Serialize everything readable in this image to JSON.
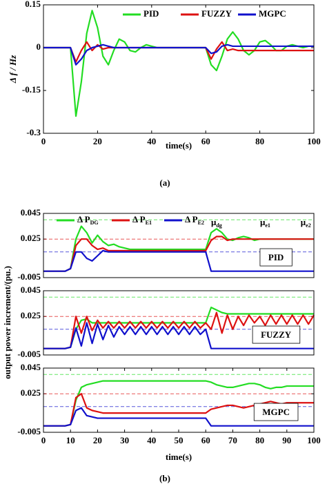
{
  "chart_data": [
    {
      "type": "line",
      "ylabel": "Δ f / Hz",
      "xlabel": "time(s)",
      "caption": "(a)",
      "legend": "upper right",
      "xlim": [
        0,
        100
      ],
      "xticks": [
        0,
        20,
        40,
        60,
        80,
        100
      ],
      "ylim": [
        -0.3,
        0.15
      ],
      "yticks": [
        0.15,
        0,
        -0.15,
        -0.3
      ],
      "x": [
        0,
        2,
        4,
        6,
        8,
        10,
        12,
        14,
        16,
        18,
        20,
        22,
        24,
        26,
        28,
        30,
        32,
        34,
        36,
        38,
        40,
        42,
        44,
        46,
        48,
        50,
        52,
        54,
        56,
        58,
        60,
        62,
        64,
        66,
        68,
        70,
        72,
        74,
        76,
        78,
        80,
        82,
        84,
        86,
        88,
        90,
        92,
        94,
        96,
        98,
        100
      ],
      "series": [
        {
          "name": "PID",
          "color": "#22dd22",
          "values": [
            0,
            0,
            0,
            0,
            0,
            0,
            -0.24,
            -0.12,
            0.05,
            0.13,
            0.07,
            -0.03,
            -0.06,
            -0.01,
            0.03,
            0.02,
            -0.01,
            -0.015,
            0,
            0.01,
            0.005,
            0,
            0,
            0,
            0,
            0,
            0,
            0,
            0,
            0,
            0,
            -0.06,
            -0.08,
            -0.03,
            0.03,
            0.055,
            0.03,
            -0.01,
            -0.025,
            -0.01,
            0.02,
            0.025,
            0.01,
            -0.01,
            -0.01,
            0.005,
            0.01,
            0.005,
            0,
            0.005,
            0.005
          ]
        },
        {
          "name": "FUZZY",
          "color": "#dd1111",
          "values": [
            0,
            0,
            0,
            0,
            0,
            0,
            -0.05,
            -0.01,
            0.02,
            -0.01,
            0.01,
            -0.005,
            0,
            0,
            0,
            0,
            0,
            0,
            0,
            0,
            0,
            0,
            0,
            0,
            0,
            0,
            0,
            0,
            0,
            0,
            0,
            -0.04,
            -0.005,
            0.02,
            -0.01,
            -0.005,
            -0.01,
            -0.01,
            -0.01,
            -0.01,
            -0.01,
            -0.01,
            -0.01,
            -0.01,
            -0.01,
            -0.01,
            -0.01,
            -0.01,
            -0.01,
            -0.01,
            -0.01
          ]
        },
        {
          "name": "MGPC",
          "color": "#1010cc",
          "values": [
            0,
            0,
            0,
            0,
            0,
            0,
            -0.06,
            -0.04,
            -0.01,
            0,
            0.005,
            0.01,
            0.005,
            0,
            0,
            0,
            0,
            0,
            0,
            0,
            0,
            0,
            0,
            0,
            0,
            0,
            0,
            0,
            0,
            0,
            0,
            -0.02,
            -0.015,
            0.005,
            0.01,
            0.005,
            0.005,
            0.005,
            0.005,
            0.005,
            0.005,
            0.005,
            0.005,
            0.005,
            0.005,
            0.005,
            0.005,
            0.005,
            0.005,
            0.005,
            0.005
          ]
        }
      ]
    },
    {
      "type": "line",
      "label": "PID",
      "legend": "top",
      "xlim": [
        0,
        100
      ],
      "ylim": [
        -0.005,
        0.045
      ],
      "yticks": [
        -0.005,
        0.025,
        0.045
      ],
      "references": [
        {
          "label": "μ",
          "subscript": "dg",
          "value": 0.04,
          "color": "#22dd22"
        },
        {
          "label": "μ",
          "subscript": "e1",
          "value": 0.025,
          "color": "#dd1111"
        },
        {
          "label": "μ",
          "subscript": "e2",
          "value": 0.015,
          "color": "#1010cc"
        }
      ],
      "x": [
        0,
        2,
        4,
        6,
        8,
        10,
        12,
        14,
        16,
        18,
        20,
        22,
        24,
        26,
        28,
        30,
        32,
        34,
        36,
        38,
        40,
        42,
        44,
        46,
        48,
        50,
        52,
        54,
        56,
        58,
        60,
        62,
        64,
        66,
        68,
        70,
        72,
        74,
        76,
        78,
        80,
        82,
        84,
        86,
        88,
        90,
        92,
        94,
        96,
        98,
        100
      ],
      "series": [
        {
          "name": "Δ P",
          "subscript": "DG",
          "color": "#22dd22",
          "values": [
            0,
            0,
            0,
            0,
            0,
            0.002,
            0.025,
            0.035,
            0.03,
            0.022,
            0.028,
            0.023,
            0.02,
            0.021,
            0.019,
            0.018,
            0.017,
            0.017,
            0.017,
            0.017,
            0.017,
            0.017,
            0.017,
            0.017,
            0.017,
            0.017,
            0.017,
            0.017,
            0.017,
            0.017,
            0.017,
            0.03,
            0.033,
            0.03,
            0.025,
            0.024,
            0.026,
            0.027,
            0.026,
            0.024,
            0.025,
            0.025,
            0.025,
            0.025,
            0.025,
            0.025,
            0.025,
            0.025,
            0.025,
            0.025,
            0.025
          ]
        },
        {
          "name": "Δ P",
          "subscript": "E1",
          "color": "#dd1111",
          "values": [
            0,
            0,
            0,
            0,
            0,
            0.002,
            0.02,
            0.025,
            0.025,
            0.02,
            0.017,
            0.018,
            0.016,
            0.016,
            0.016,
            0.016,
            0.016,
            0.016,
            0.016,
            0.016,
            0.016,
            0.016,
            0.016,
            0.016,
            0.016,
            0.016,
            0.016,
            0.016,
            0.016,
            0.016,
            0.016,
            0.024,
            0.027,
            0.027,
            0.024,
            0.025,
            0.025,
            0.025,
            0.025,
            0.025,
            0.025,
            0.025,
            0.025,
            0.025,
            0.025,
            0.025,
            0.025,
            0.025,
            0.025,
            0.025,
            0.025
          ]
        },
        {
          "name": "Δ P",
          "subscript": "E2",
          "color": "#1010cc",
          "values": [
            0,
            0,
            0,
            0,
            0,
            0.002,
            0.015,
            0.015,
            0.01,
            0.008,
            0.012,
            0.016,
            0.015,
            0.015,
            0.015,
            0.015,
            0.015,
            0.015,
            0.015,
            0.015,
            0.015,
            0.015,
            0.015,
            0.015,
            0.015,
            0.015,
            0.015,
            0.015,
            0.015,
            0.015,
            0.015,
            0,
            0,
            0,
            0,
            0,
            0,
            0,
            0,
            0,
            0,
            0,
            0,
            0,
            0,
            0,
            0,
            0,
            0,
            0,
            0
          ]
        }
      ]
    },
    {
      "type": "line",
      "label": "FUZZY",
      "ylabel": "output power increment/(pu.)",
      "xlim": [
        0,
        100
      ],
      "ylim": [
        -0.005,
        0.045
      ],
      "yticks": [
        -0.005,
        0.025,
        0.045
      ],
      "references": [
        {
          "value": 0.04,
          "color": "#22dd22"
        },
        {
          "value": 0.025,
          "color": "#dd1111"
        },
        {
          "value": 0.015,
          "color": "#1010cc"
        }
      ],
      "x": [
        0,
        2,
        4,
        6,
        8,
        10,
        12,
        14,
        16,
        18,
        20,
        22,
        24,
        26,
        28,
        30,
        32,
        34,
        36,
        38,
        40,
        42,
        44,
        46,
        48,
        50,
        52,
        54,
        56,
        58,
        60,
        62,
        64,
        66,
        68,
        70,
        72,
        74,
        76,
        78,
        80,
        82,
        84,
        86,
        88,
        90,
        92,
        94,
        96,
        98,
        100
      ],
      "series": [
        {
          "color": "#22dd22",
          "values": [
            0,
            0,
            0,
            0,
            0,
            0.001,
            0.015,
            0.022,
            0.023,
            0.02,
            0.02,
            0.02,
            0.02,
            0.02,
            0.02,
            0.02,
            0.02,
            0.02,
            0.02,
            0.02,
            0.02,
            0.02,
            0.02,
            0.02,
            0.02,
            0.02,
            0.02,
            0.02,
            0.02,
            0.02,
            0.02,
            0.032,
            0.03,
            0.028,
            0.027,
            0.027,
            0.027,
            0.027,
            0.027,
            0.027,
            0.027,
            0.027,
            0.027,
            0.027,
            0.027,
            0.027,
            0.027,
            0.027,
            0.027,
            0.027,
            0.027
          ]
        },
        {
          "color": "#dd1111",
          "values": [
            0,
            0,
            0,
            0,
            0,
            0.001,
            0.025,
            0.012,
            0.025,
            0.014,
            0.022,
            0.016,
            0.021,
            0.016,
            0.021,
            0.016,
            0.021,
            0.016,
            0.021,
            0.016,
            0.021,
            0.016,
            0.021,
            0.016,
            0.021,
            0.016,
            0.021,
            0.016,
            0.021,
            0.016,
            0.02,
            0.015,
            0.028,
            0.012,
            0.026,
            0.015,
            0.025,
            0.018,
            0.026,
            0.02,
            0.025,
            0.018,
            0.026,
            0.019,
            0.026,
            0.019,
            0.026,
            0.019,
            0.026,
            0.019,
            0.026
          ]
        },
        {
          "color": "#1010cc",
          "values": [
            0,
            0,
            0,
            0,
            0,
            0.001,
            0.016,
            0.002,
            0.02,
            0.004,
            0.019,
            0.007,
            0.018,
            0.009,
            0.017,
            0.011,
            0.017,
            0.011,
            0.017,
            0.011,
            0.017,
            0.011,
            0.017,
            0.011,
            0.017,
            0.011,
            0.017,
            0.011,
            0.017,
            0.011,
            0.015,
            0,
            0,
            0,
            0,
            0,
            0,
            0,
            0,
            0,
            0,
            0,
            0,
            0,
            0,
            0,
            0,
            0,
            0,
            0,
            0
          ]
        }
      ]
    },
    {
      "type": "line",
      "label": "MGPC",
      "xlabel": "time(s)",
      "caption": "(b)",
      "xlim": [
        0,
        100
      ],
      "xticks": [
        0,
        10,
        20,
        30,
        40,
        50,
        60,
        70,
        80,
        90,
        100
      ],
      "ylim": [
        -0.005,
        0.045
      ],
      "yticks": [
        -0.005,
        0.025,
        0.045
      ],
      "references": [
        {
          "value": 0.04,
          "color": "#22dd22"
        },
        {
          "value": 0.025,
          "color": "#dd1111"
        },
        {
          "value": 0.015,
          "color": "#1010cc"
        }
      ],
      "x": [
        0,
        2,
        4,
        6,
        8,
        10,
        12,
        14,
        16,
        18,
        20,
        22,
        24,
        26,
        28,
        30,
        32,
        34,
        36,
        38,
        40,
        42,
        44,
        46,
        48,
        50,
        52,
        54,
        56,
        58,
        60,
        62,
        64,
        66,
        68,
        70,
        72,
        74,
        76,
        78,
        80,
        82,
        84,
        86,
        88,
        90,
        92,
        94,
        96,
        98,
        100
      ],
      "series": [
        {
          "color": "#22dd22",
          "values": [
            0,
            0,
            0,
            0,
            0,
            0.001,
            0.02,
            0.03,
            0.032,
            0.033,
            0.034,
            0.035,
            0.035,
            0.035,
            0.035,
            0.035,
            0.035,
            0.035,
            0.035,
            0.035,
            0.035,
            0.035,
            0.035,
            0.035,
            0.035,
            0.035,
            0.035,
            0.035,
            0.035,
            0.035,
            0.035,
            0.034,
            0.032,
            0.031,
            0.03,
            0.03,
            0.031,
            0.032,
            0.033,
            0.033,
            0.032,
            0.03,
            0.029,
            0.03,
            0.03,
            0.031,
            0.031,
            0.031,
            0.031,
            0.031,
            0.031
          ]
        },
        {
          "color": "#dd1111",
          "values": [
            0,
            0,
            0,
            0,
            0,
            0.001,
            0.022,
            0.025,
            0.014,
            0.012,
            0.011,
            0.01,
            0.01,
            0.01,
            0.01,
            0.01,
            0.01,
            0.01,
            0.01,
            0.01,
            0.01,
            0.01,
            0.01,
            0.01,
            0.01,
            0.01,
            0.01,
            0.01,
            0.01,
            0.01,
            0.01,
            0.013,
            0.014,
            0.015,
            0.016,
            0.016,
            0.015,
            0.014,
            0.015,
            0.016,
            0.017,
            0.018,
            0.019,
            0.018,
            0.017,
            0.018,
            0.018,
            0.018,
            0.018,
            0.018,
            0.018
          ]
        },
        {
          "color": "#1010cc",
          "values": [
            0,
            0,
            0,
            0,
            0,
            0.001,
            0.012,
            0.014,
            0.008,
            0.007,
            0.006,
            0.006,
            0.006,
            0.006,
            0.006,
            0.006,
            0.006,
            0.006,
            0.006,
            0.006,
            0.006,
            0.006,
            0.006,
            0.006,
            0.006,
            0.006,
            0.006,
            0.006,
            0.006,
            0.006,
            0.006,
            0,
            0,
            0,
            0,
            0,
            0,
            0,
            0,
            0,
            0,
            0,
            0,
            0,
            0,
            0,
            0,
            0,
            0,
            0,
            0
          ]
        }
      ]
    }
  ]
}
